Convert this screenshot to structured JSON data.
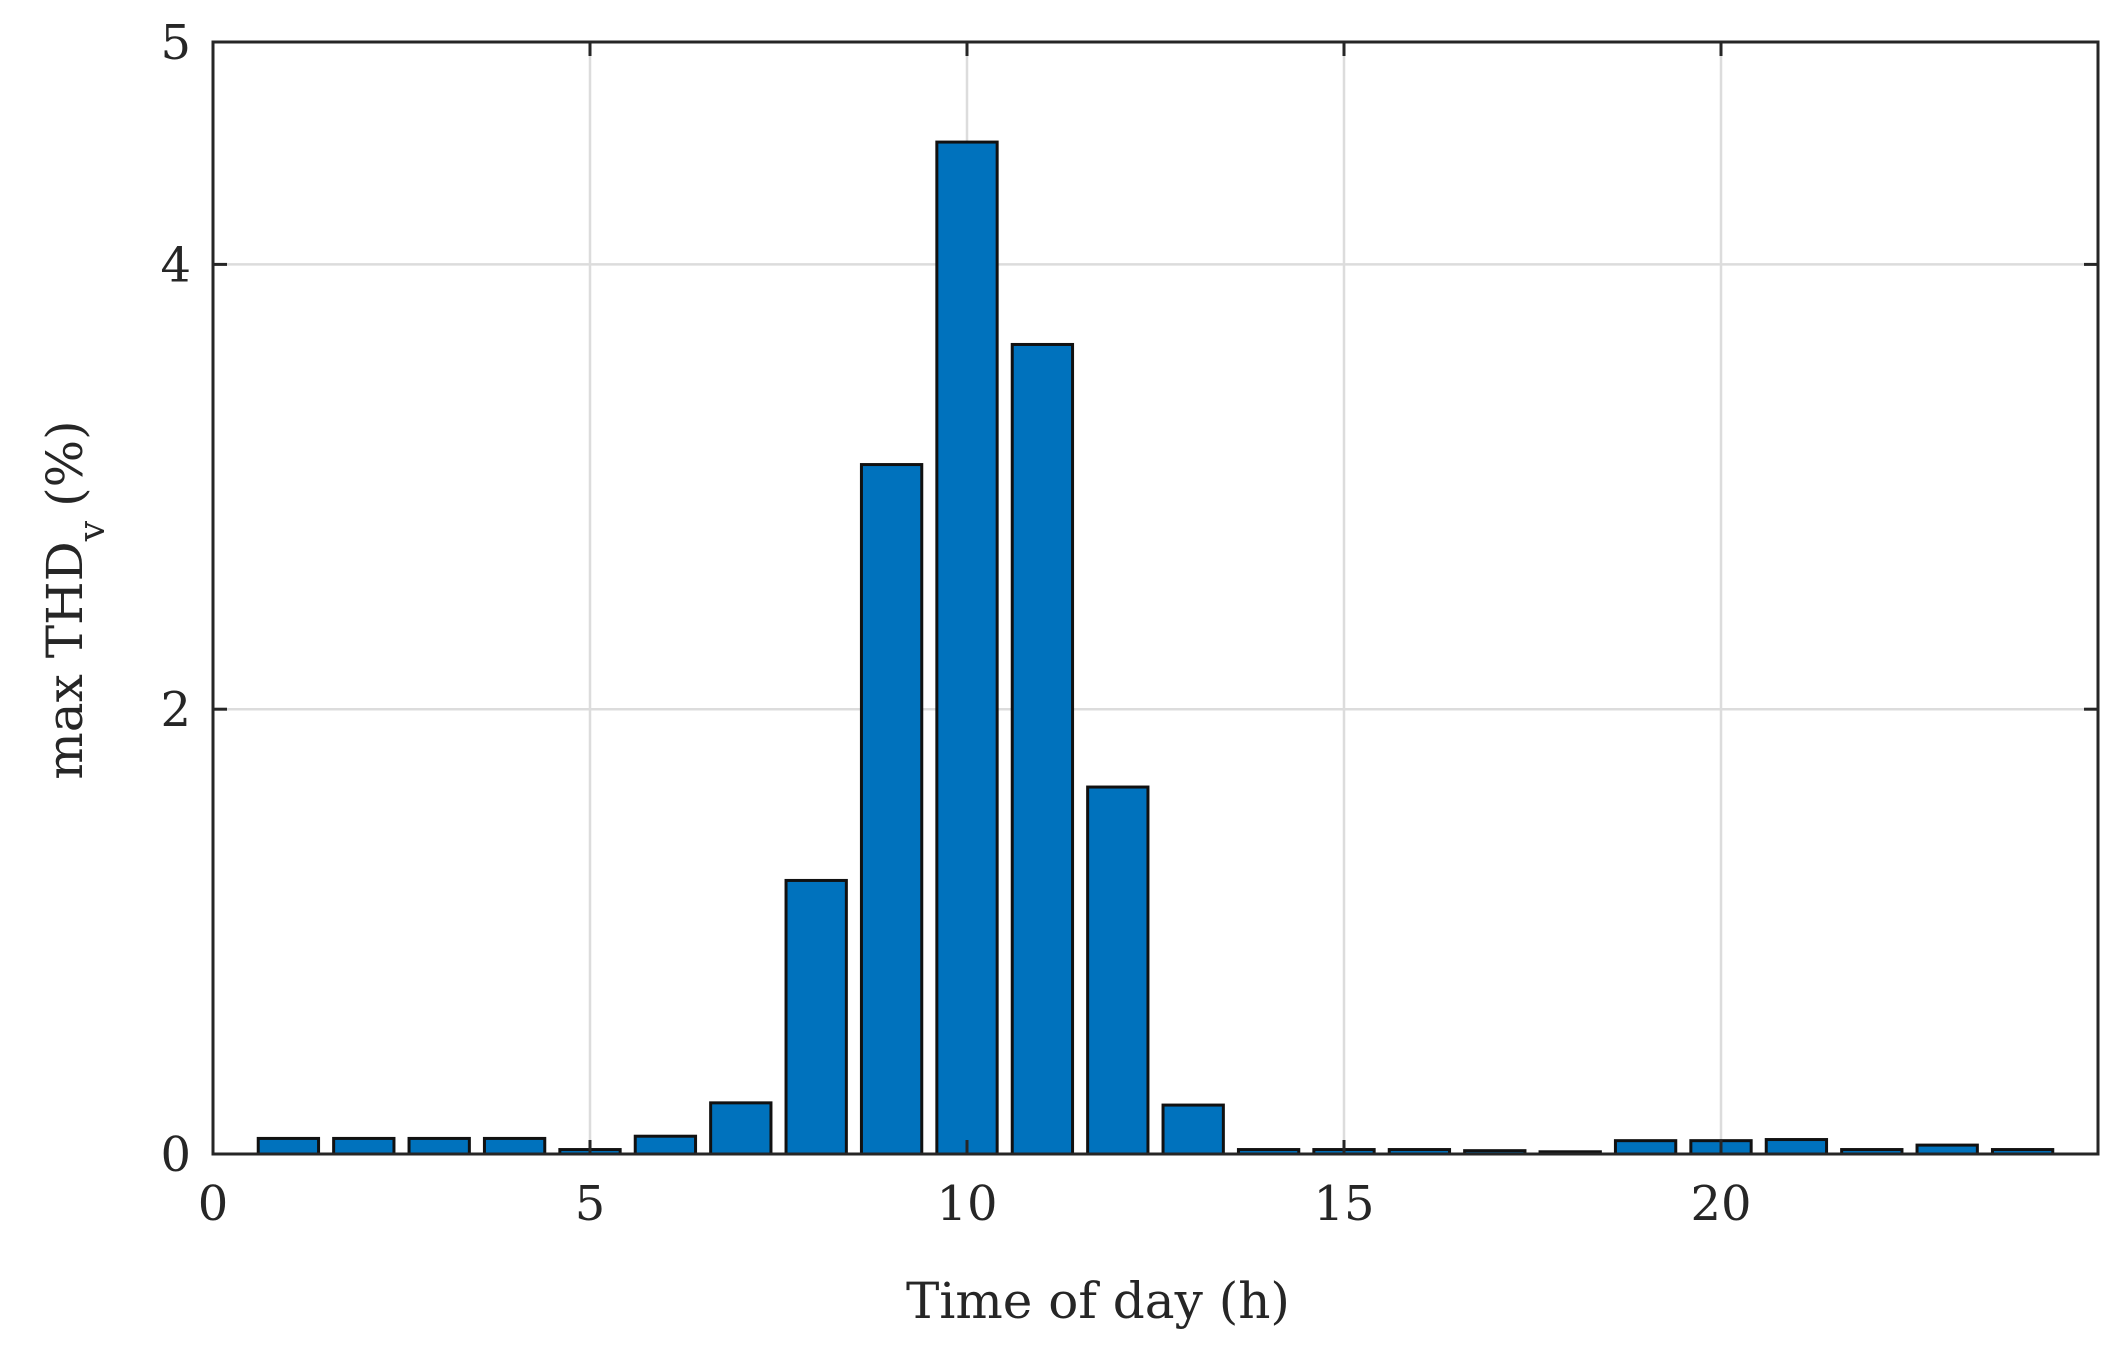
{
  "chart_data": {
    "type": "bar",
    "title": "",
    "xlabel": "Time of day (h)",
    "ylabel": {
      "main": "max THD",
      "subscript": "v",
      "suffix": "(%)"
    },
    "xlim": [
      0,
      25
    ],
    "ylim": [
      0,
      5
    ],
    "xticks": [
      0,
      5,
      10,
      15,
      20
    ],
    "xtick_labels": [
      "0",
      "5",
      "10",
      "15",
      "20"
    ],
    "yticks": [
      0,
      2,
      4,
      5
    ],
    "ytick_labels": [
      "0",
      "2",
      "4",
      "5"
    ],
    "grid": true,
    "bar_color": "#0072BD",
    "edge_color": "#111111",
    "x": [
      1,
      2,
      3,
      4,
      5,
      6,
      7,
      8,
      9,
      10,
      11,
      12,
      13,
      14,
      15,
      16,
      17,
      18,
      19,
      20,
      21,
      22,
      23,
      24
    ],
    "values": [
      0.07,
      0.07,
      0.07,
      0.07,
      0.02,
      0.08,
      0.23,
      1.23,
      3.1,
      4.55,
      3.64,
      1.65,
      0.22,
      0.02,
      0.02,
      0.02,
      0.015,
      0.01,
      0.06,
      0.06,
      0.065,
      0.02,
      0.04,
      0.02
    ]
  }
}
